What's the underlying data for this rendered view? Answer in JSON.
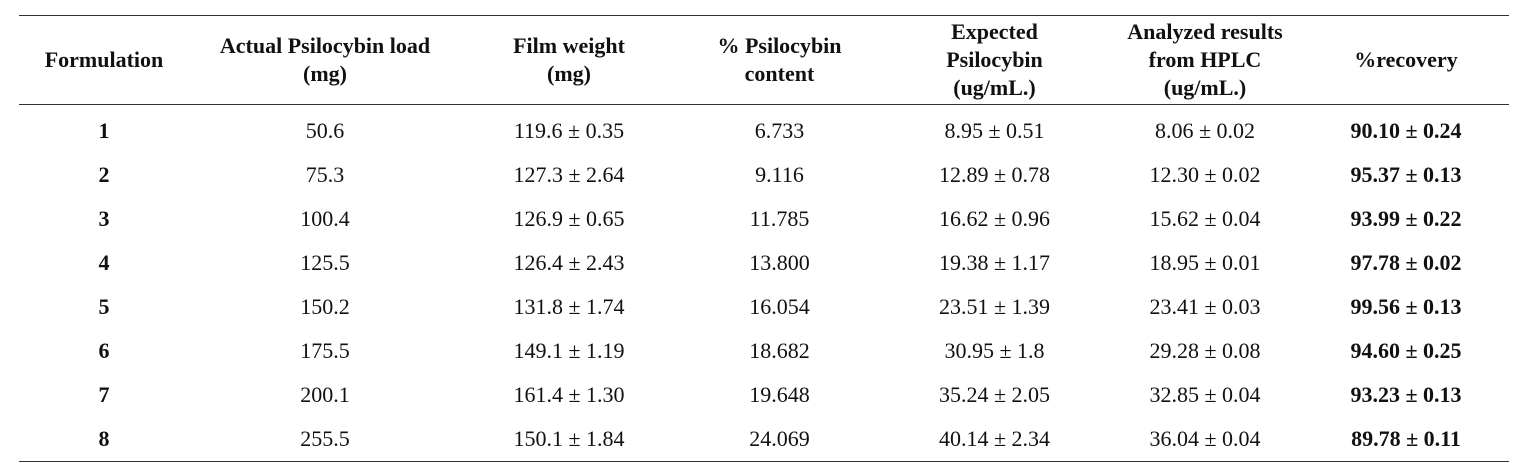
{
  "table": {
    "headers": [
      "Formulation",
      "Actual Psilocybin load (mg)",
      "Film weight (mg)",
      "% Psilocybin content",
      "Expected Psilocybin (ug/mL.)",
      "Analyzed results from HPLC (ug/mL.)",
      "%recovery"
    ],
    "rows": [
      [
        "1",
        "50.6",
        "119.6 ± 0.35",
        "6.733",
        "8.95 ± 0.51",
        "8.06 ± 0.02",
        "90.10 ± 0.24"
      ],
      [
        "2",
        "75.3",
        "127.3 ± 2.64",
        "9.116",
        "12.89 ± 0.78",
        "12.30 ± 0.02",
        "95.37 ± 0.13"
      ],
      [
        "3",
        "100.4",
        "126.9 ± 0.65",
        "11.785",
        "16.62 ± 0.96",
        "15.62 ± 0.04",
        "93.99 ± 0.22"
      ],
      [
        "4",
        "125.5",
        "126.4 ± 2.43",
        "13.800",
        "19.38 ± 1.17",
        "18.95 ± 0.01",
        "97.78 ± 0.02"
      ],
      [
        "5",
        "150.2",
        "131.8 ± 1.74",
        "16.054",
        "23.51 ± 1.39",
        "23.41 ± 0.03",
        "99.56 ± 0.13"
      ],
      [
        "6",
        "175.5",
        "149.1 ± 1.19",
        "18.682",
        "30.95 ± 1.8",
        "29.28 ± 0.08",
        "94.60 ± 0.25"
      ],
      [
        "7",
        "200.1",
        "161.4 ± 1.30",
        "19.648",
        "35.24 ± 2.05",
        "32.85 ± 0.04",
        "93.23 ± 0.13"
      ],
      [
        "8",
        "255.5",
        "150.1 ± 1.84",
        "24.069",
        "40.14 ± 2.34",
        "36.04 ± 0.04",
        "89.78 ± 0.11"
      ]
    ]
  }
}
